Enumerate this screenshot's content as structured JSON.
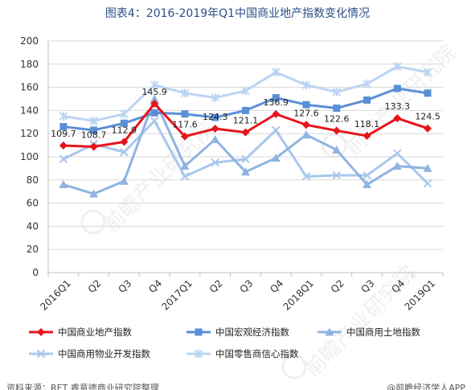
{
  "title": "图表4：2016-2019年Q1中国商业地产指数变化情况",
  "footer": {
    "source": "资料来源：RET 睿意德商业研究院整理",
    "credit": "@前瞻经济学人APP"
  },
  "watermark": "前瞻产业研究院",
  "colors": {
    "title": "#2c4f86",
    "grid": "#d9d9d9",
    "axis": "#bfbfbf",
    "commercial_real_estate": "#e8141b",
    "macro_economy": "#5a8fd6",
    "commercial_land": "#8fb3e2",
    "commercial_property_dev": "#a9c7ec",
    "retail_confidence": "#bcd4f2"
  },
  "chart_data": {
    "type": "line",
    "categories": [
      "2016Q1",
      "Q2",
      "Q3",
      "Q4",
      "2017Q1",
      "Q2",
      "Q3",
      "Q4",
      "2018Q1",
      "Q2",
      "Q3",
      "Q4",
      "2019Q1"
    ],
    "ylim": [
      0,
      200
    ],
    "yticks": [
      0,
      20,
      40,
      60,
      80,
      100,
      120,
      140,
      160,
      180,
      200
    ],
    "grid": true,
    "legend_position": "bottom",
    "series": [
      {
        "name": "中国商业地产指数",
        "marker": "diamond",
        "color_key": "commercial_real_estate",
        "values": [
          109.7,
          108.7,
          112.9,
          145.9,
          117.6,
          124.3,
          121.1,
          136.9,
          127.6,
          122.6,
          118.1,
          133.3,
          124.5
        ],
        "labels": [
          "109.7",
          "108.7",
          "112.9",
          "145.9",
          "117.6",
          "124.3",
          "121.1",
          "136.9",
          "127.6",
          "122.6",
          "118.1",
          "133.3",
          "124.5"
        ]
      },
      {
        "name": "中国宏观经济指数",
        "marker": "square",
        "color_key": "macro_economy",
        "values": [
          126,
          123,
          129,
          138,
          137,
          134,
          140,
          151,
          145,
          142,
          149,
          159,
          155
        ]
      },
      {
        "name": "中国商用土地指数",
        "marker": "triangle",
        "color_key": "commercial_land",
        "values": [
          76,
          68,
          79,
          150,
          92,
          115,
          87,
          99,
          119,
          106,
          76,
          92,
          90
        ]
      },
      {
        "name": "中国商用物业开发指数",
        "marker": "x",
        "color_key": "commercial_property_dev",
        "values": [
          98,
          111,
          104,
          131,
          83,
          95,
          98,
          123,
          83,
          84,
          84,
          103,
          77
        ]
      },
      {
        "name": "中国零售商信心指数",
        "marker": "star",
        "color_key": "retail_confidence",
        "values": [
          135,
          131,
          137,
          162,
          155,
          151,
          157,
          173,
          162,
          156,
          163,
          178,
          173
        ]
      }
    ]
  }
}
